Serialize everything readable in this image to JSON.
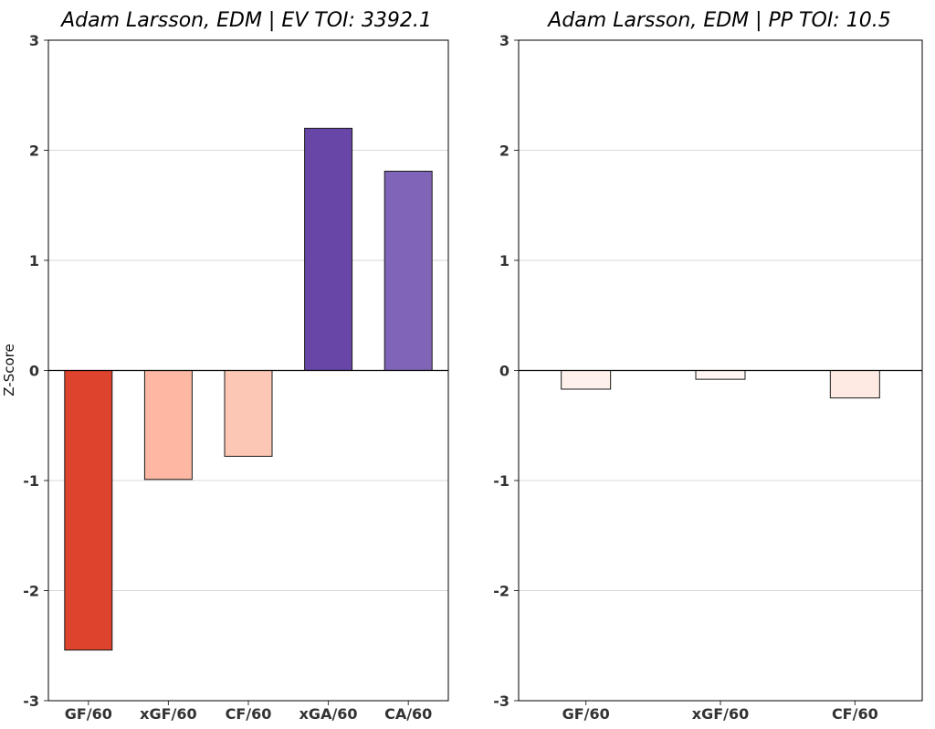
{
  "chart_data": [
    {
      "type": "bar",
      "title": "Adam Larsson, EDM  |  EV TOI: 3392.1",
      "ylabel": "Z-Score",
      "xlabel": "",
      "ylim": [
        -3,
        3
      ],
      "yticks": [
        -3,
        -2,
        -1,
        0,
        1,
        2,
        3
      ],
      "grid": "horizontal",
      "categories": [
        "GF/60",
        "xGF/60",
        "CF/60",
        "xGA/60",
        "CA/60"
      ],
      "values": [
        -2.54,
        -0.99,
        -0.78,
        2.2,
        1.81
      ],
      "colors": [
        "#de432d",
        "#fdb7a3",
        "#fdc7b5",
        "#6746a8",
        "#8064b7"
      ]
    },
    {
      "type": "bar",
      "title": "Adam Larsson, EDM  |  PP TOI: 10.5",
      "ylabel": "",
      "xlabel": "",
      "ylim": [
        -3,
        3
      ],
      "yticks": [
        -3,
        -2,
        -1,
        0,
        1,
        2,
        3
      ],
      "grid": "horizontal",
      "categories": [
        "GF/60",
        "xGF/60",
        "CF/60"
      ],
      "values": [
        -0.17,
        -0.08,
        -0.25
      ],
      "colors": [
        "#fef1ec",
        "#fff6f2",
        "#feeae3"
      ]
    }
  ]
}
